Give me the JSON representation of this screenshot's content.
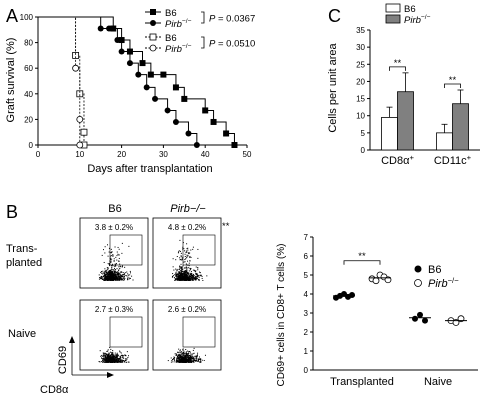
{
  "panels": {
    "A": "A",
    "B": "B",
    "C": "C"
  },
  "panel_a": {
    "ylabel": "Graft survival (%)",
    "xlabel": "Days after transplantation",
    "y_ticks": [
      "0",
      "20",
      "40",
      "60",
      "80",
      "100"
    ],
    "x_ticks": [
      "0",
      "10",
      "20",
      "30",
      "40",
      "50"
    ],
    "legend": [
      {
        "name": "B6",
        "pval": "P = 0.0367"
      },
      {
        "name": "Pirb−/−",
        "pval": ""
      },
      {
        "name": "B6",
        "pval": "P = 0.0510"
      },
      {
        "name": "Pirb−/−",
        "pval": ""
      }
    ]
  },
  "panel_b": {
    "col_labels": [
      "B6",
      "Pirb−/−"
    ],
    "row_labels": [
      "Trans-\nplanted",
      "Naive"
    ],
    "row_label_lines": [
      [
        "Trans-",
        "planted"
      ],
      [
        "Naive"
      ]
    ],
    "gate_values": [
      "3.8 ± 0.2%",
      "4.8 ± 0.2%",
      "2.7 ± 0.3%",
      "2.6 ± 0.2%"
    ],
    "sig": "**",
    "y_axis": "CD69",
    "x_axis": "CD8α"
  },
  "chart_data": [
    {
      "type": "line",
      "title": "",
      "xlabel": "Days after transplantation",
      "ylabel": "Graft survival (%)",
      "xlim": [
        0,
        50
      ],
      "ylim": [
        0,
        100
      ],
      "series": [
        {
          "name": "B6",
          "marker": "filled square",
          "steps": [
            [
              0,
              100
            ],
            [
              16,
              100
            ],
            [
              18,
              91
            ],
            [
              20,
              82
            ],
            [
              22,
              73
            ],
            [
              25,
              64
            ],
            [
              27,
              55
            ],
            [
              30,
              55
            ],
            [
              33,
              45
            ],
            [
              35,
              36
            ],
            [
              40,
              27
            ],
            [
              42,
              18
            ],
            [
              45,
              9
            ],
            [
              47,
              0
            ]
          ]
        },
        {
          "name": "Pirb−/−",
          "marker": "filled circle",
          "steps": [
            [
              0,
              100
            ],
            [
              14,
              100
            ],
            [
              15,
              91
            ],
            [
              17,
              91
            ],
            [
              19,
              82
            ],
            [
              20,
              73
            ],
            [
              22,
              64
            ],
            [
              24,
              55
            ],
            [
              26,
              45
            ],
            [
              28,
              36
            ],
            [
              31,
              27
            ],
            [
              33,
              18
            ],
            [
              36,
              9
            ],
            [
              38,
              0
            ]
          ]
        },
        {
          "name": "B6",
          "marker": "open square",
          "steps": [
            [
              0,
              100
            ],
            [
              9,
              100
            ],
            [
              9,
              70
            ],
            [
              10,
              40
            ],
            [
              11,
              10
            ],
            [
              11,
              0
            ]
          ]
        },
        {
          "name": "Pirb−/−",
          "marker": "open circle",
          "steps": [
            [
              0,
              100
            ],
            [
              9,
              100
            ],
            [
              9,
              60
            ],
            [
              10,
              20
            ],
            [
              10,
              0
            ]
          ]
        }
      ],
      "annotations": [
        "P = 0.0367",
        "P = 0.0510"
      ]
    },
    {
      "type": "bar",
      "title": "",
      "ylabel": "Cells per unit area",
      "categories": [
        "CD8α+",
        "CD11c+"
      ],
      "ylim": [
        0,
        35
      ],
      "y_ticks": [
        "0",
        "5",
        "10",
        "15",
        "20",
        "25",
        "30",
        "35"
      ],
      "series": [
        {
          "name": "B6",
          "color": "#ffffff",
          "values": [
            9.5,
            5.0
          ],
          "error": [
            3.0,
            2.5
          ]
        },
        {
          "name": "Pirb−/−",
          "color": "#808080",
          "values": [
            17.0,
            13.5
          ],
          "error": [
            5.5,
            4.0
          ]
        }
      ],
      "significance": [
        "**",
        "**"
      ]
    },
    {
      "type": "scatter",
      "title": "",
      "ylabel": "CD69+ cells in CD8+ T cells (%)",
      "categories": [
        "Transplanted",
        "Naive"
      ],
      "ylim": [
        0,
        7
      ],
      "y_ticks": [
        "0",
        "1",
        "2",
        "3",
        "4",
        "5",
        "6",
        "7"
      ],
      "series": [
        {
          "name": "B6",
          "marker": "filled circle",
          "groups": [
            [
              3.8,
              3.9,
              4.0,
              3.85,
              3.95
            ],
            [
              2.7,
              2.9,
              2.6
            ]
          ],
          "means": [
            3.9,
            2.75
          ]
        },
        {
          "name": "Pirb−/−",
          "marker": "open circle",
          "groups": [
            [
              4.8,
              4.7,
              5.0,
              4.9,
              4.75
            ],
            [
              2.6,
              2.5,
              2.7
            ]
          ],
          "means": [
            4.85,
            2.6
          ]
        }
      ],
      "significance": "**"
    }
  ]
}
